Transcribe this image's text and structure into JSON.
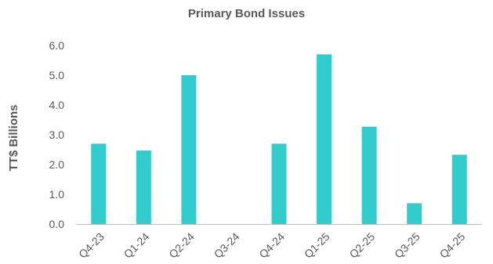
{
  "chart_data": {
    "type": "bar",
    "title": "Primary Bond Issues",
    "ylabel": "TT$ Billions",
    "xlabel": "",
    "categories": [
      "Q4-23",
      "Q1-24",
      "Q2-24",
      "Q3-24",
      "Q4-24",
      "Q1-25",
      "Q2-25",
      "Q3-25",
      "Q4-25"
    ],
    "values": [
      2.7,
      2.47,
      5.0,
      0,
      2.7,
      5.7,
      3.27,
      0.7,
      2.33
    ],
    "yticks": [
      "0.0",
      "1.0",
      "2.0",
      "3.0",
      "4.0",
      "5.0",
      "6.0"
    ],
    "ylim": [
      0,
      6
    ],
    "grid": false,
    "bar_color": "#33CCCC",
    "axis_color": "#BFBFBF"
  }
}
